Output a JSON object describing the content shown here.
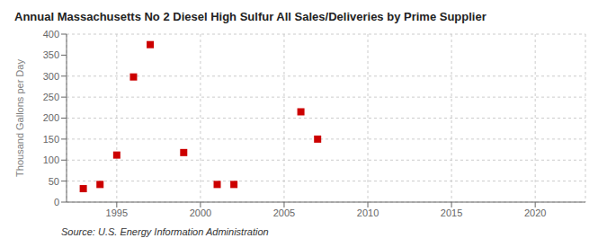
{
  "chart_data": {
    "type": "scatter",
    "title": "Annual Massachusetts No 2 Diesel High Sulfur All Sales/Deliveries by Prime Supplier",
    "y_label": "Thousand Gallons per Day",
    "annotations": [
      "Source: U.S. Energy Information Administration"
    ],
    "x": [
      1993,
      1994,
      1995,
      1996,
      1997,
      1999,
      2001,
      2002,
      2006,
      2007
    ],
    "values": [
      32,
      42,
      112,
      298,
      375,
      118,
      42,
      42,
      215,
      150
    ],
    "color": "#cc0000",
    "marker": "square",
    "xlim": [
      1992,
      2023
    ],
    "ylim": [
      0,
      400
    ],
    "xticks": [
      1995,
      2000,
      2005,
      2010,
      2015,
      2020
    ],
    "yticks": [
      0,
      50,
      100,
      150,
      200,
      250,
      300,
      350,
      400
    ],
    "grid": true
  }
}
